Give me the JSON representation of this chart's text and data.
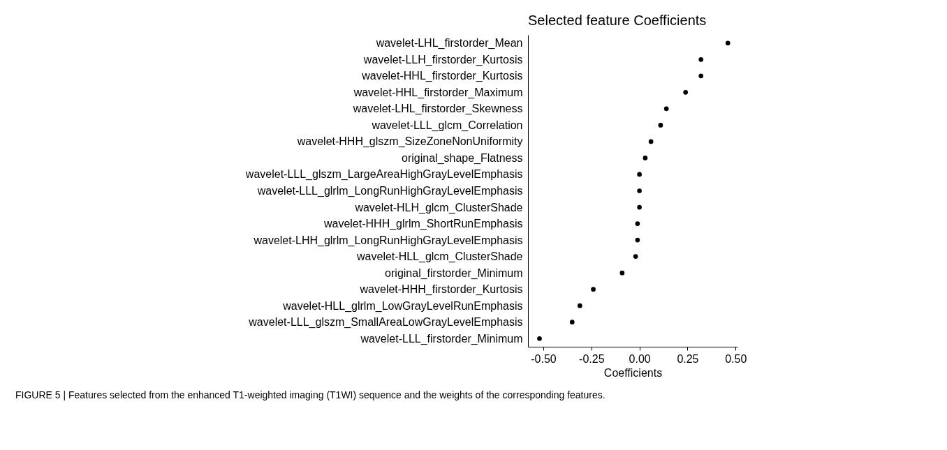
{
  "chart_data": {
    "type": "scatter",
    "orientation": "horizontal",
    "title": "Selected feature Coefficients",
    "xlabel": "Coefficients",
    "categories": [
      "wavelet-LHL_firstorder_Mean",
      "wavelet-LLH_firstorder_Kurtosis",
      "wavelet-HHL_firstorder_Kurtosis",
      "wavelet-HHL_firstorder_Maximum",
      "wavelet-LHL_firstorder_Skewness",
      "wavelet-LLL_glcm_Correlation",
      "wavelet-HHH_glszm_SizeZoneNonUniformity",
      "original_shape_Flatness",
      "wavelet-LLL_glszm_LargeAreaHighGrayLevelEmphasis",
      "wavelet-LLL_glrlm_LongRunHighGrayLevelEmphasis",
      "wavelet-HLH_glcm_ClusterShade",
      "wavelet-HHH_glrlm_ShortRunEmphasis",
      "wavelet-LHH_glrlm_LongRunHighGrayLevelEmphasis",
      "wavelet-HLL_glcm_ClusterShade",
      "original_firstorder_Minimum",
      "wavelet-HHH_firstorder_Kurtosis",
      "wavelet-HLL_glrlm_LowGrayLevelRunEmphasis",
      "wavelet-LLL_glszm_SmallAreaLowGrayLevelEmphasis",
      "wavelet-LLL_firstorder_Minimum"
    ],
    "series": [
      {
        "color": "#000000",
        "values": [
          0.46,
          0.32,
          0.32,
          0.24,
          0.14,
          0.11,
          0.06,
          0.03,
          0.0,
          0.0,
          0.0,
          -0.01,
          -0.01,
          -0.02,
          -0.09,
          -0.24,
          -0.31,
          -0.35,
          -0.52
        ]
      }
    ],
    "xlim": [
      -0.58,
      0.51
    ],
    "xticks": [
      {
        "value": -0.5,
        "label": "-0.50"
      },
      {
        "value": -0.25,
        "label": "-0.25"
      },
      {
        "value": 0,
        "label": "0.00"
      },
      {
        "value": 0.25,
        "label": "0.25"
      },
      {
        "value": 0.5,
        "label": "0.50"
      }
    ],
    "marker": "circle",
    "grid": false,
    "legend": false,
    "annotations": [
      "FIGURE 5 | Features selected from the enhanced T1-weighted imaging (T1WI) sequence and the weights of the corresponding features."
    ]
  }
}
